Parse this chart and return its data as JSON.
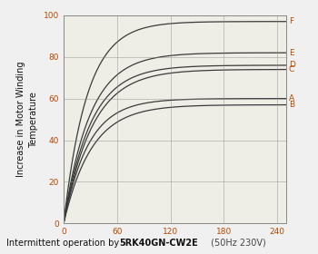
{
  "ylabel": "Increase in Motor Winding\nTemperature",
  "caption_normal": "Intermittent operation by ",
  "caption_bold": "5RK40GN-CW2E",
  "caption_suffix": " (50Hz 230V)",
  "xlim": [
    0,
    250
  ],
  "ylim": [
    0,
    100
  ],
  "xticks": [
    0,
    60,
    120,
    180,
    240
  ],
  "yticks": [
    0,
    20,
    40,
    60,
    80,
    100
  ],
  "plot_bg_color": "#eeeee6",
  "fig_bg_color": "#f0f0f0",
  "grid_color": "#888888",
  "line_color": "#3a3a3a",
  "tick_label_color": "#b84800",
  "curves": [
    {
      "label": "F",
      "asymptote": 97,
      "rate": 0.038
    },
    {
      "label": "E",
      "asymptote": 82,
      "rate": 0.034
    },
    {
      "label": "D",
      "asymptote": 76,
      "rate": 0.033
    },
    {
      "label": "C",
      "asymptote": 74,
      "rate": 0.031
    },
    {
      "label": "A",
      "asymptote": 60,
      "rate": 0.036
    },
    {
      "label": "B",
      "asymptote": 57,
      "rate": 0.032
    }
  ]
}
